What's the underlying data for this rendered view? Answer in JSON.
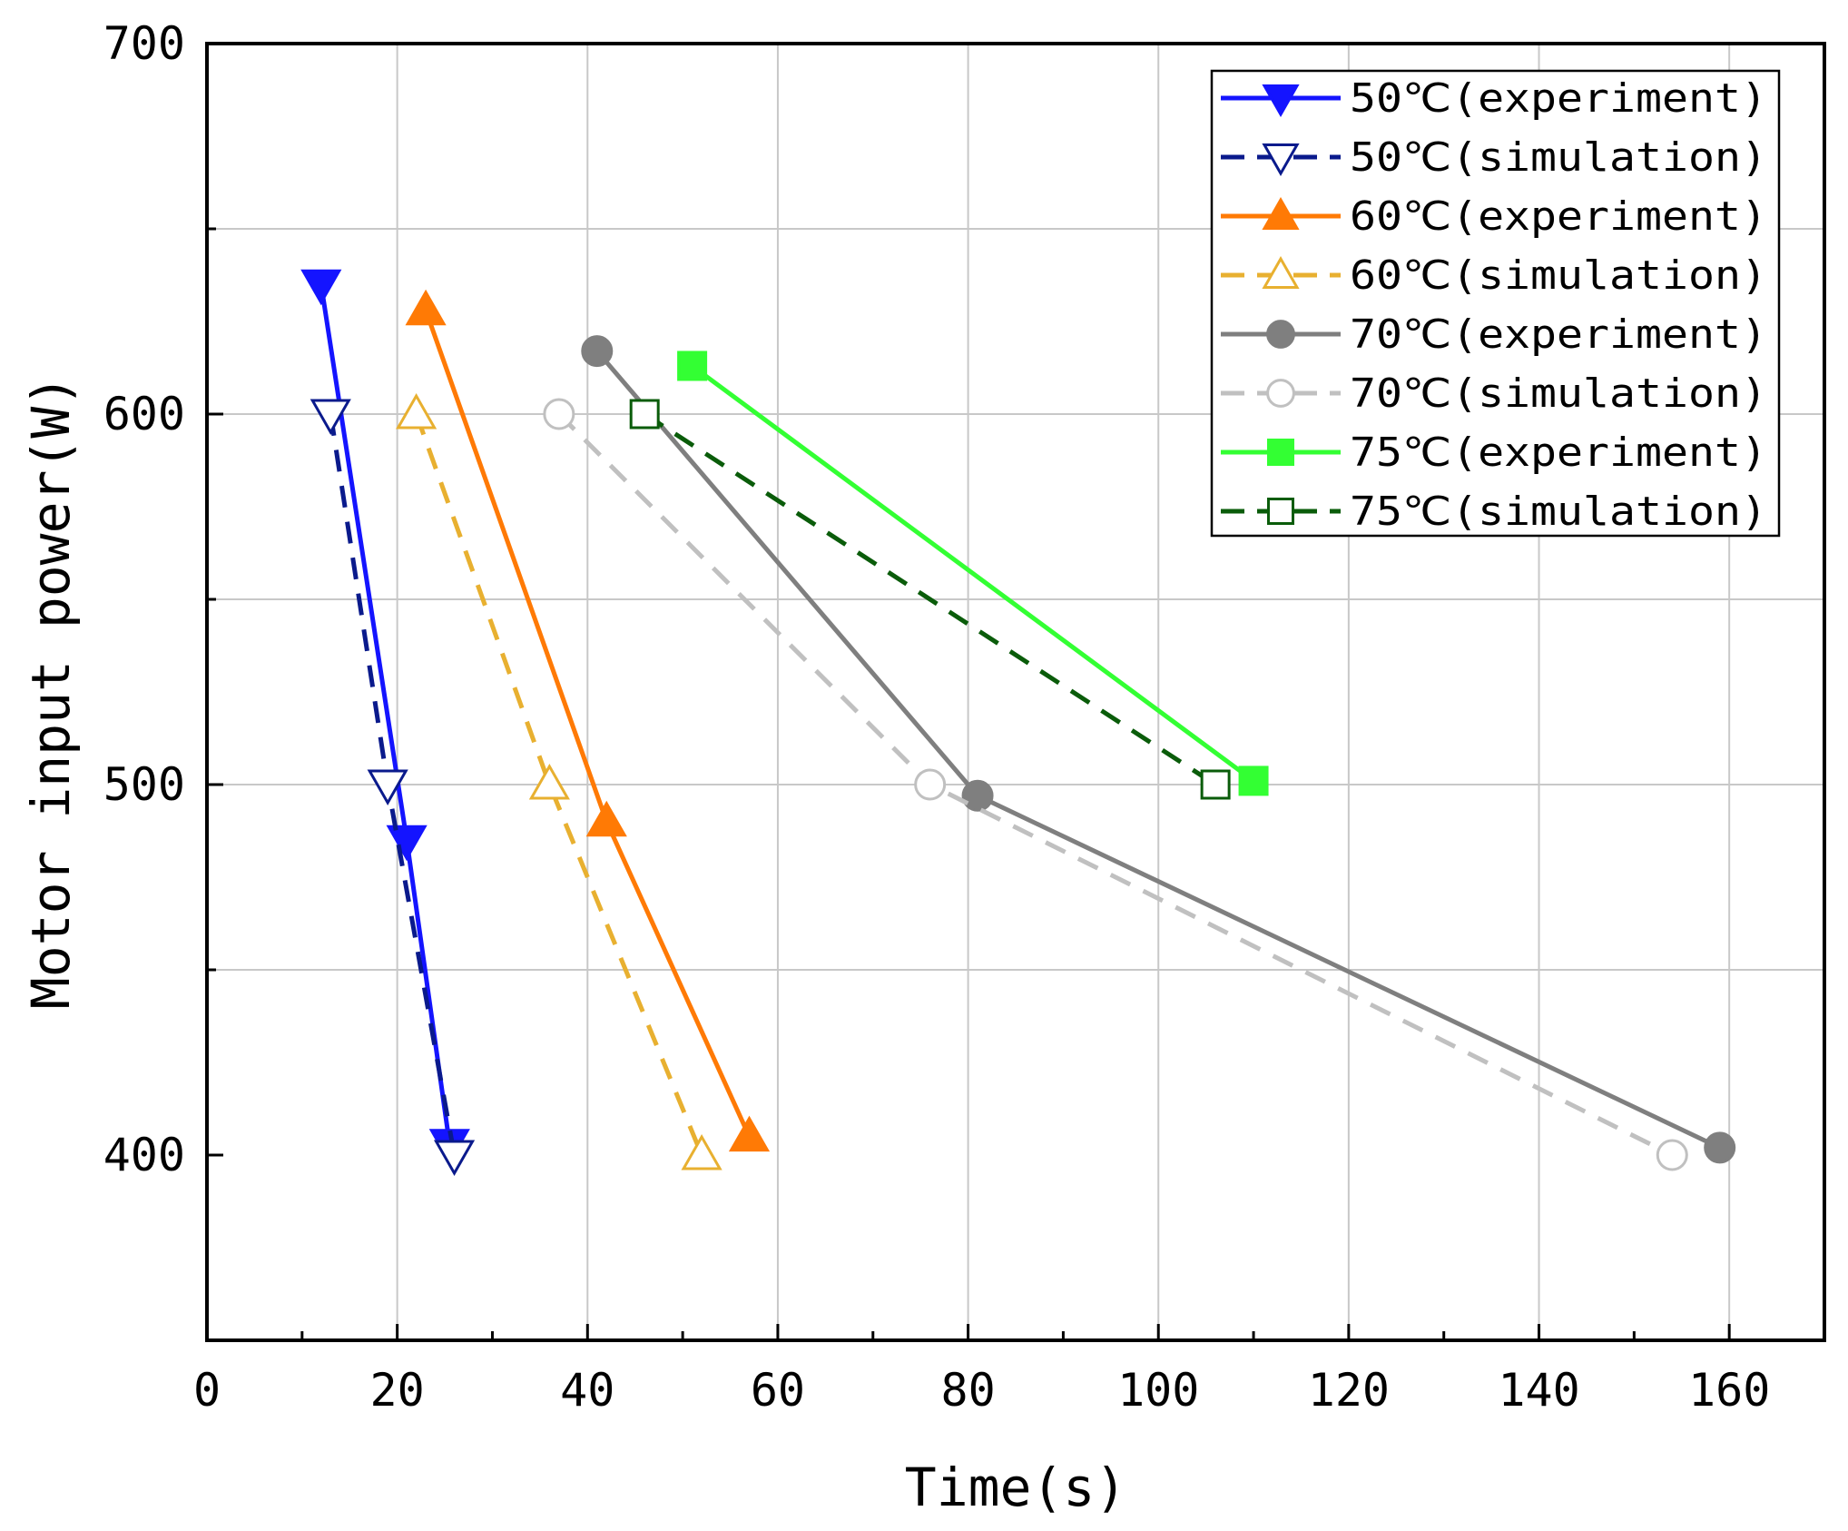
{
  "chart_data": {
    "type": "line",
    "title": "",
    "xlabel": "Time(s)",
    "ylabel": "Motor input power(W)",
    "xlim": [
      0,
      170
    ],
    "ylim": [
      350,
      700
    ],
    "xticks": [
      0,
      20,
      40,
      60,
      80,
      100,
      120,
      140,
      160
    ],
    "yticks": [
      400,
      500,
      600,
      700
    ],
    "grid": true,
    "legend_position": "top-right",
    "series": [
      {
        "name": "50℃(experiment)",
        "color": "#1414ff",
        "line": "solid",
        "marker": "triangle-down",
        "filled": true,
        "x": [
          12,
          21,
          25.5
        ],
        "y": [
          635,
          485,
          403
        ]
      },
      {
        "name": "50℃(simulation)",
        "color": "#0a1a8c",
        "line": "dashed",
        "marker": "triangle-down",
        "filled": false,
        "x": [
          13,
          19,
          26
        ],
        "y": [
          600,
          500,
          400
        ]
      },
      {
        "name": "60℃(experiment)",
        "color": "#ff7a05",
        "line": "solid",
        "marker": "triangle-up",
        "filled": true,
        "x": [
          23,
          42,
          57
        ],
        "y": [
          628,
          490,
          405
        ]
      },
      {
        "name": "60℃(simulation)",
        "color": "#e8b030",
        "line": "dashed",
        "marker": "triangle-up",
        "filled": false,
        "x": [
          22,
          36,
          52
        ],
        "y": [
          600,
          500,
          400
        ]
      },
      {
        "name": "70℃(experiment)",
        "color": "#7f7f7f",
        "line": "solid",
        "marker": "circle",
        "filled": true,
        "x": [
          41,
          81,
          159
        ],
        "y": [
          617,
          497,
          402
        ]
      },
      {
        "name": "70℃(simulation)",
        "color": "#c0c0c0",
        "line": "dashed",
        "marker": "circle",
        "filled": false,
        "x": [
          37,
          76,
          154
        ],
        "y": [
          600,
          500,
          400
        ]
      },
      {
        "name": "75℃(experiment)",
        "color": "#33ff33",
        "line": "solid",
        "marker": "square",
        "filled": true,
        "x": [
          51,
          110
        ],
        "y": [
          613,
          501
        ]
      },
      {
        "name": "75℃(simulation)",
        "color": "#0a5c0a",
        "line": "dashed",
        "marker": "square",
        "filled": false,
        "x": [
          46,
          106
        ],
        "y": [
          600,
          500
        ]
      }
    ]
  }
}
